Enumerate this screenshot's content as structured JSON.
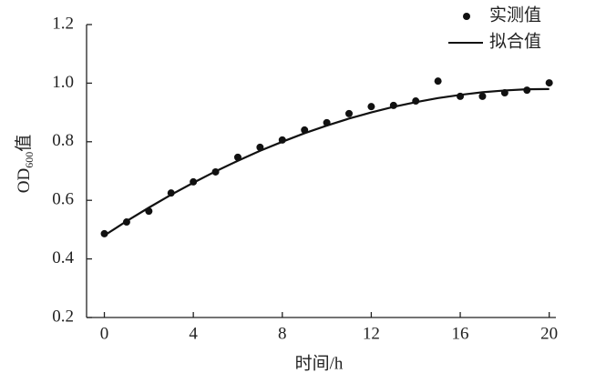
{
  "chart_data": {
    "type": "line",
    "y_label": {
      "main": "OD",
      "sub": "600",
      "suffix": "值"
    },
    "x_label": "时间/h",
    "x": [
      0,
      1,
      2,
      3,
      4,
      5,
      6,
      7,
      8,
      9,
      10,
      11,
      12,
      13,
      14,
      15,
      16,
      17,
      18,
      19,
      20
    ],
    "series": [
      {
        "name": "实测值",
        "color": "#111111",
        "style": "markers",
        "values": [
          0.486,
          0.526,
          0.563,
          0.625,
          0.663,
          0.697,
          0.747,
          0.781,
          0.806,
          0.84,
          0.865,
          0.896,
          0.92,
          0.924,
          0.939,
          1.007,
          0.955,
          0.955,
          0.967,
          0.976,
          1.001
        ]
      },
      {
        "name": "拟合值",
        "color": "#111111",
        "style": "line",
        "values": [
          0.48,
          0.529,
          0.575,
          0.619,
          0.66,
          0.699,
          0.735,
          0.769,
          0.8,
          0.829,
          0.855,
          0.879,
          0.9,
          0.919,
          0.935,
          0.949,
          0.96,
          0.969,
          0.975,
          0.979,
          0.98
        ]
      }
    ],
    "xlim": [
      -0.8,
      20.3
    ],
    "xticks": [
      0,
      4,
      8,
      12,
      16,
      20
    ],
    "ylim": [
      0.2,
      1.2
    ],
    "yticks": [
      0.2,
      0.4,
      0.6,
      0.8,
      {
        "value": 1,
        "label": "1.0"
      },
      1.2
    ],
    "legend": "top-right",
    "grid": false
  }
}
